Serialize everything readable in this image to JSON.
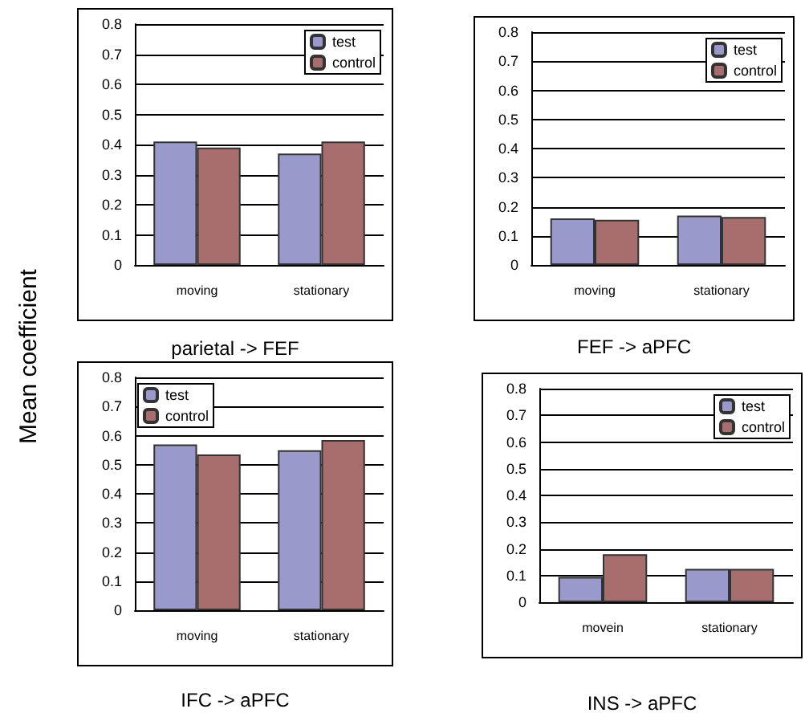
{
  "chart_data": [
    {
      "type": "bar",
      "title": "parietal -> FEF",
      "ylabel": "Mean coefficient",
      "categories": [
        "moving",
        "stationary"
      ],
      "series": [
        {
          "name": "test",
          "color": "#9999cc",
          "values": [
            0.41,
            0.37
          ]
        },
        {
          "name": "control",
          "color": "#a86d6d",
          "values": [
            0.39,
            0.41
          ]
        }
      ],
      "ylim": [
        0,
        0.8
      ],
      "yticks": [
        0,
        0.1,
        0.2,
        0.3,
        0.4,
        0.5,
        0.6,
        0.7,
        0.8
      ],
      "grid": "y",
      "legend": "top right"
    },
    {
      "type": "bar",
      "title": "FEF -> aPFC",
      "categories": [
        "moving",
        "stationary"
      ],
      "series": [
        {
          "name": "test",
          "color": "#9999cc",
          "values": [
            0.16,
            0.17
          ]
        },
        {
          "name": "control",
          "color": "#a86d6d",
          "values": [
            0.155,
            0.165
          ]
        }
      ],
      "ylim": [
        0,
        0.8
      ],
      "yticks": [
        0,
        0.1,
        0.2,
        0.3,
        0.4,
        0.5,
        0.6,
        0.7,
        0.8
      ],
      "grid": "y",
      "legend": "top right"
    },
    {
      "type": "bar",
      "title": "IFC -> aPFC",
      "categories": [
        "moving",
        "stationary"
      ],
      "series": [
        {
          "name": "test",
          "color": "#9999cc",
          "values": [
            0.57,
            0.55
          ]
        },
        {
          "name": "control",
          "color": "#a86d6d",
          "values": [
            0.535,
            0.585
          ]
        }
      ],
      "ylim": [
        0,
        0.8
      ],
      "yticks": [
        0,
        0.1,
        0.2,
        0.3,
        0.4,
        0.5,
        0.6,
        0.7,
        0.8
      ],
      "grid": "y",
      "legend": "top left"
    },
    {
      "type": "bar",
      "title": "INS -> aPFC",
      "categories": [
        "movein",
        "stationary"
      ],
      "series": [
        {
          "name": "test",
          "color": "#9999cc",
          "values": [
            0.095,
            0.125
          ]
        },
        {
          "name": "control",
          "color": "#a86d6d",
          "values": [
            0.18,
            0.125
          ]
        }
      ],
      "ylim": [
        0,
        0.8
      ],
      "yticks": [
        0,
        0.1,
        0.2,
        0.3,
        0.4,
        0.5,
        0.6,
        0.7,
        0.8
      ],
      "grid": "y",
      "legend": "top right"
    }
  ]
}
